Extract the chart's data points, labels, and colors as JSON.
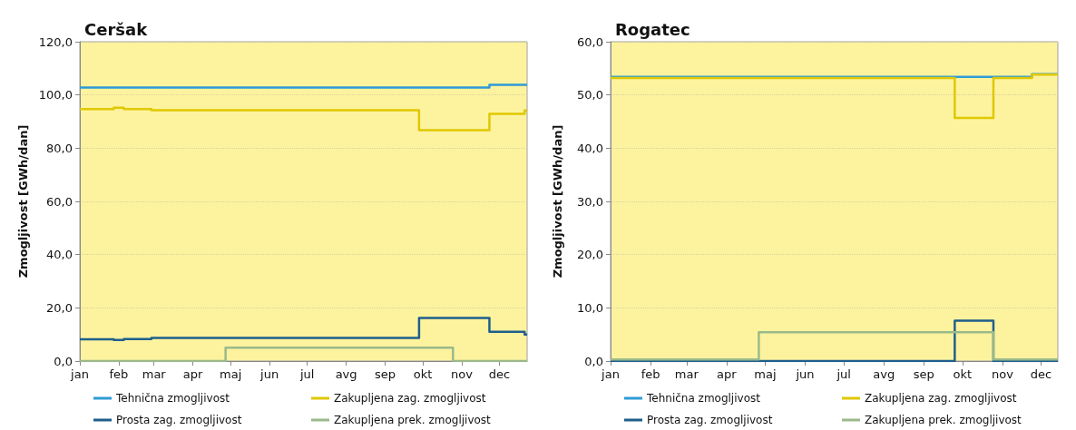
{
  "chart_data": [
    {
      "type": "step",
      "title": "Ceršak",
      "ylabel": "Zmogljivost [GWh/dan]",
      "xlim": [
        "--01-01",
        "--12-23"
      ],
      "xticks": [
        {
          "value": "--01-01",
          "label": "jan"
        },
        {
          "value": "--02-01",
          "label": "feb"
        },
        {
          "value": "--03-01",
          "label": "mar"
        },
        {
          "value": "--04-01",
          "label": "apr"
        },
        {
          "value": "--05-01",
          "label": "maj"
        },
        {
          "value": "--06-01",
          "label": "jun"
        },
        {
          "value": "--07-01",
          "label": "jul"
        },
        {
          "value": "--08-01",
          "label": "avg"
        },
        {
          "value": "--09-01",
          "label": "sep"
        },
        {
          "value": "--10-01",
          "label": "okt"
        },
        {
          "value": "--11-01",
          "label": "nov"
        },
        {
          "value": "--12-01",
          "label": "dec"
        }
      ],
      "ylim": [
        0,
        120
      ],
      "yticks": [
        {
          "value": 0,
          "label": "0,0"
        },
        {
          "value": 20,
          "label": "20,0"
        },
        {
          "value": 40,
          "label": "40,0"
        },
        {
          "value": 60,
          "label": "60,0"
        },
        {
          "value": 80,
          "label": "80,0"
        },
        {
          "value": 100,
          "label": "100,0"
        },
        {
          "value": 120,
          "label": "120,0"
        }
      ],
      "grid": "y",
      "legend": "bottom",
      "line_style": "solid",
      "marker": "none",
      "series": [
        {
          "name": "Tehnična zmogljivost",
          "color": "#2f9bd6",
          "x": [
            "--01-01",
            "--11-23",
            "--12-23"
          ],
          "values": [
            102.8,
            103.8,
            103.8
          ]
        },
        {
          "name": "Zakupljena zag. zmogljivost",
          "color": "#e0c800",
          "x": [
            "--01-01",
            "--01-28",
            "--02-05",
            "--02-27",
            "--09-28",
            "--11-23",
            "--12-21",
            "--12-23"
          ],
          "values": [
            94.7,
            95.2,
            94.7,
            94.3,
            86.8,
            92.9,
            94.2,
            94.2
          ]
        },
        {
          "name": "Prosta zag. zmogljivost",
          "color": "#1f5f8b",
          "x": [
            "--01-01",
            "--01-28",
            "--02-05",
            "--02-27",
            "--09-28",
            "--11-23",
            "--12-21",
            "--12-23"
          ],
          "values": [
            8.2,
            7.9,
            8.3,
            8.7,
            16.2,
            11.0,
            10.0,
            10.0
          ]
        },
        {
          "name": "Zakupljena prek. zmogljivost",
          "color": "#9bb98a",
          "x": [
            "--01-01",
            "--04-27",
            "--10-25",
            "--12-23"
          ],
          "values": [
            0,
            5.0,
            0,
            0
          ]
        }
      ]
    },
    {
      "type": "step",
      "title": "Rogatec",
      "ylabel": "Zmogljivost [GWh/dan]",
      "xlim": [
        "--01-01",
        "--12-14"
      ],
      "xticks": [
        {
          "value": "--01-01",
          "label": "jan"
        },
        {
          "value": "--02-01",
          "label": "feb"
        },
        {
          "value": "--03-01",
          "label": "mar"
        },
        {
          "value": "--04-01",
          "label": "apr"
        },
        {
          "value": "--05-01",
          "label": "maj"
        },
        {
          "value": "--06-01",
          "label": "jun"
        },
        {
          "value": "--07-01",
          "label": "jul"
        },
        {
          "value": "--08-01",
          "label": "avg"
        },
        {
          "value": "--09-01",
          "label": "sep"
        },
        {
          "value": "--10-01",
          "label": "okt"
        },
        {
          "value": "--11-01",
          "label": "nov"
        },
        {
          "value": "--12-01",
          "label": "dec"
        }
      ],
      "ylim": [
        0,
        60
      ],
      "yticks": [
        {
          "value": 0,
          "label": "0,0"
        },
        {
          "value": 10,
          "label": "10,0"
        },
        {
          "value": 20,
          "label": "20,0"
        },
        {
          "value": 30,
          "label": "30,0"
        },
        {
          "value": 40,
          "label": "40,0"
        },
        {
          "value": 50,
          "label": "50,0"
        },
        {
          "value": 60,
          "label": "60,0"
        }
      ],
      "grid": "y",
      "legend": "bottom",
      "line_style": "solid",
      "marker": "none",
      "series": [
        {
          "name": "Tehnična zmogljivost",
          "color": "#2f9bd6",
          "x": [
            "--01-01",
            "--11-24",
            "--12-14"
          ],
          "values": [
            53.4,
            53.9,
            53.9
          ]
        },
        {
          "name": "Zakupljena zag. zmogljivost",
          "color": "#e0c800",
          "x": [
            "--01-01",
            "--09-25",
            "--10-25",
            "--11-24",
            "--12-14"
          ],
          "values": [
            53.2,
            45.7,
            53.2,
            53.8,
            53.8
          ]
        },
        {
          "name": "Prosta zag. zmogljivost",
          "color": "#1f5f8b",
          "x": [
            "--01-01",
            "--09-25",
            "--10-25",
            "--12-14"
          ],
          "values": [
            0,
            7.6,
            0,
            0
          ]
        },
        {
          "name": "Zakupljena prek. zmogljivost",
          "color": "#9bb98a",
          "x": [
            "--01-01",
            "--04-26",
            "--10-25",
            "--12-14"
          ],
          "values": [
            0.3,
            5.4,
            0.3,
            0.3
          ]
        }
      ]
    }
  ]
}
